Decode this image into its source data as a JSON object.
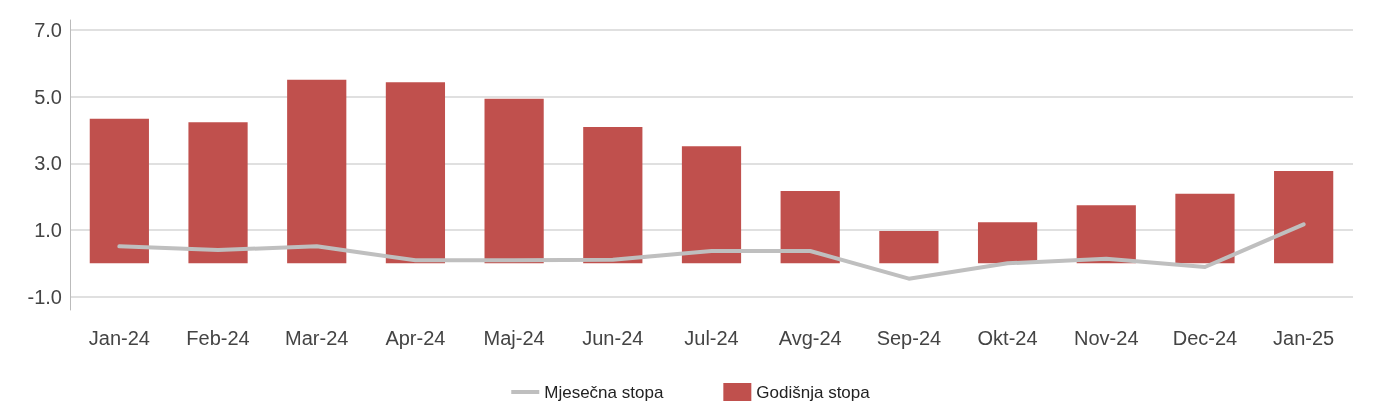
{
  "chart_data": {
    "type": "bar",
    "categories": [
      "Jan-24",
      "Feb-24",
      "Mar-24",
      "Apr-24",
      "Maj-24",
      "Jun-24",
      "Jul-24",
      "Avg-24",
      "Sep-24",
      "Okt-24",
      "Nov-24",
      "Dec-24",
      "Jan-25"
    ],
    "series": [
      {
        "name": "Mjesečna stopa",
        "type": "line",
        "color": "#bfbfbf",
        "values": [
          0.51,
          0.4,
          0.51,
          0.09,
          0.09,
          0.11,
          0.37,
          0.37,
          -0.46,
          0.0,
          0.14,
          -0.11,
          1.17
        ]
      },
      {
        "name": "Godišnja stopa",
        "color": "#c0504d",
        "values": [
          4.34,
          4.23,
          5.51,
          5.43,
          4.94,
          4.09,
          3.51,
          2.17,
          0.97,
          1.23,
          1.74,
          2.09,
          2.77
        ]
      }
    ],
    "ylim": [
      -1.4,
      7.3
    ],
    "yticks": [
      {
        "value": -1,
        "label": "-1.0"
      },
      {
        "value": 1,
        "label": "1.0"
      },
      {
        "value": 3,
        "label": "3.0"
      },
      {
        "value": 5,
        "label": "5.0"
      },
      {
        "value": 7,
        "label": "7.0"
      }
    ],
    "grid": "y",
    "legend": "bottom",
    "marker": "none",
    "line_style": "solid"
  }
}
